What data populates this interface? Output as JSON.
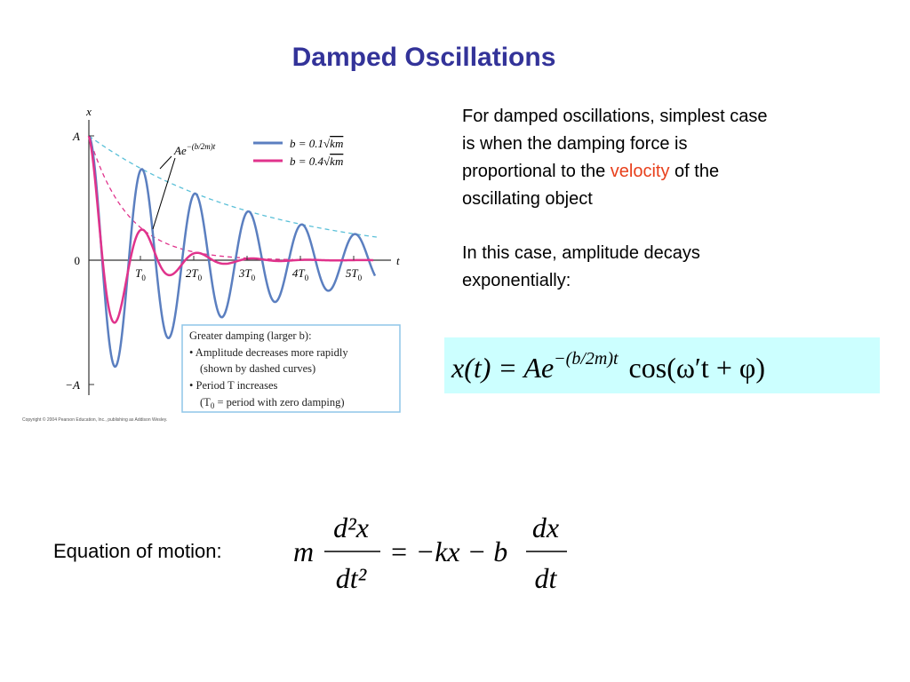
{
  "title": "Damped Oscillations",
  "figure": {
    "y_axis_label": "x",
    "x_axis_label": "t",
    "y_labels": [
      "A",
      "0",
      "−A"
    ],
    "x_labels": [
      {
        "main": "T",
        "sub": "0"
      },
      {
        "main": "2T",
        "sub": "0"
      },
      {
        "main": "3T",
        "sub": "0"
      },
      {
        "main": "4T",
        "sub": "0"
      },
      {
        "main": "5T",
        "sub": "0"
      }
    ],
    "envelope_label": {
      "base": "Ae",
      "exponent": "−(b/2m)t"
    },
    "legend": [
      {
        "prefix": "b = 0.1√",
        "radicand": "km"
      },
      {
        "prefix": "b = 0.4√",
        "radicand": "km"
      }
    ],
    "note": {
      "line_1": "Greater damping (larger b):",
      "line_2": "• Amplitude decreases more rapidly",
      "line_3": "(shown by dashed curves)",
      "line_4": "• Period T increases",
      "line_5": [
        "(T",
        "0",
        " = period with zero damping)"
      ]
    },
    "copyright": "Copyright © 2004 Pearson Education, Inc., publishing as Addison Wesley."
  },
  "paragraph_1": [
    [
      "For damped oscillations, simplest case"
    ],
    [
      "is when the damping force is"
    ],
    [
      "proportional to the ",
      "velocity",
      " of the"
    ],
    [
      "oscillating object"
    ]
  ],
  "paragraph_2": [
    "In this case, amplitude decays",
    "exponentially:"
  ],
  "solution": {
    "lhs": "x(t) = Ae",
    "exponent": "−(b/2m)t",
    "rhs": "cos(ω′t + φ)"
  },
  "equation_of_motion": {
    "label": "Equation of motion:",
    "coefficient": "m",
    "lhs_numerator": "d²x",
    "lhs_denominator": "dt²",
    "middle": "= −kx − b",
    "rhs_numerator": "dx",
    "rhs_denominator": "dt"
  }
}
